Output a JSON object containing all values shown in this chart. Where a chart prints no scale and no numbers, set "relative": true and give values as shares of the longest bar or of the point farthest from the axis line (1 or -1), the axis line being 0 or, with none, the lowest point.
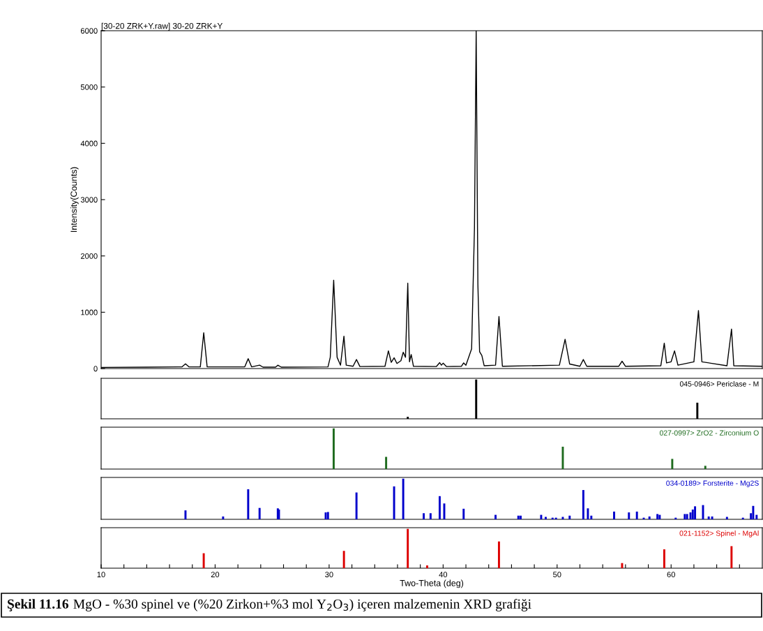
{
  "chart_data": [
    {
      "type": "line",
      "title": "[30-20 ZRK+Y.raw] 30-20 ZRK+Y",
      "ylabel": "Intensity(Counts)",
      "xlim": [
        10,
        68
      ],
      "ylim": [
        0,
        6000
      ],
      "yticks": [
        0,
        1000,
        2000,
        3000,
        4000,
        5000,
        6000
      ],
      "tick_labels": "y",
      "legend": false,
      "marker": "none",
      "line_style": "solid",
      "series": [
        {
          "color": "#000000",
          "x": [
            10,
            14,
            17.1,
            17.4,
            17.7,
            18.7,
            19.0,
            19.3,
            22.6,
            22.9,
            23.2,
            23.9,
            24.2,
            25.3,
            25.5,
            25.8,
            29.9,
            30.1,
            30.4,
            30.7,
            31.0,
            31.3,
            31.5,
            32.1,
            32.4,
            32.7,
            34.9,
            35.2,
            35.45,
            35.7,
            35.95,
            36.3,
            36.5,
            36.7,
            36.9,
            37.05,
            37.2,
            37.4,
            39.4,
            39.7,
            39.85,
            40.0,
            40.3,
            41.6,
            41.8,
            42.0,
            42.5,
            42.75,
            42.9,
            43.05,
            43.2,
            43.4,
            43.6,
            44.6,
            44.9,
            45.2,
            50.2,
            50.7,
            51.1,
            52.0,
            52.3,
            52.6,
            55.4,
            55.7,
            56.0,
            59.1,
            59.4,
            59.6,
            60.0,
            60.3,
            60.6,
            62.0,
            62.4,
            62.7,
            64.9,
            65.3,
            65.5,
            68
          ],
          "values": [
            20,
            25,
            30,
            85,
            30,
            30,
            635,
            30,
            30,
            175,
            30,
            60,
            25,
            25,
            60,
            25,
            30,
            200,
            1570,
            200,
            60,
            575,
            60,
            40,
            160,
            35,
            40,
            315,
            110,
            190,
            90,
            140,
            290,
            200,
            1515,
            120,
            250,
            40,
            35,
            105,
            60,
            95,
            35,
            40,
            100,
            60,
            350,
            2500,
            6000,
            1500,
            300,
            230,
            50,
            60,
            925,
            40,
            60,
            520,
            80,
            40,
            160,
            40,
            40,
            130,
            40,
            50,
            450,
            100,
            120,
            315,
            60,
            120,
            1030,
            120,
            50,
            700,
            50,
            40
          ]
        }
      ]
    },
    {
      "type": "bar",
      "relative": true,
      "xlim": [
        10,
        68
      ],
      "tick_labels": false,
      "legend": false,
      "series": [
        {
          "name": "045-0946> Periclase - M",
          "color": "#000000",
          "x": [
            36.9,
            42.9,
            62.3
          ],
          "values": [
            0.05,
            1.0,
            0.41
          ]
        }
      ]
    },
    {
      "type": "bar",
      "relative": true,
      "xlim": [
        10,
        68
      ],
      "tick_labels": false,
      "legend": false,
      "series": [
        {
          "name": "027-0997> ZrO2 - Zirconium O",
          "color": "#1e6b1e",
          "x": [
            30.4,
            35.0,
            50.5,
            60.1,
            63.0
          ],
          "values": [
            1.0,
            0.3,
            0.55,
            0.25,
            0.08
          ]
        }
      ]
    },
    {
      "type": "bar",
      "relative": true,
      "xlim": [
        10,
        68
      ],
      "tick_labels": false,
      "legend": false,
      "series": [
        {
          "name": "034-0189> Forsterite - Mg2S",
          "color": "#0000cc",
          "x": [
            17.4,
            20.7,
            22.9,
            23.9,
            25.5,
            25.6,
            29.7,
            29.9,
            32.4,
            35.7,
            36.5,
            38.3,
            38.9,
            39.7,
            40.1,
            41.8,
            44.6,
            46.6,
            46.8,
            48.6,
            49.0,
            49.6,
            49.9,
            50.5,
            51.1,
            52.3,
            52.7,
            53.0,
            55.0,
            56.3,
            57.0,
            57.6,
            58.1,
            58.8,
            59.0,
            60.4,
            61.2,
            61.4,
            61.7,
            61.9,
            62.1,
            62.8,
            63.3,
            63.6,
            64.9,
            66.3,
            67.0,
            67.2,
            67.5
          ],
          "values": [
            0.22,
            0.07,
            0.74,
            0.28,
            0.27,
            0.24,
            0.17,
            0.18,
            0.66,
            0.81,
            1.0,
            0.15,
            0.15,
            0.57,
            0.39,
            0.26,
            0.11,
            0.09,
            0.09,
            0.11,
            0.06,
            0.04,
            0.04,
            0.06,
            0.09,
            0.72,
            0.27,
            0.09,
            0.19,
            0.17,
            0.19,
            0.04,
            0.07,
            0.13,
            0.11,
            0.04,
            0.13,
            0.13,
            0.17,
            0.24,
            0.32,
            0.35,
            0.07,
            0.07,
            0.06,
            0.04,
            0.15,
            0.33,
            0.11
          ]
        }
      ]
    },
    {
      "type": "bar",
      "relative": true,
      "xlim": [
        10,
        68
      ],
      "tick_labels": "x",
      "legend": false,
      "xlabel": "Two-Theta (deg)",
      "xticks": [
        10,
        {
          "value": 12,
          "label": null
        },
        {
          "value": 14,
          "label": null
        },
        {
          "value": 16,
          "label": null
        },
        {
          "value": 18,
          "label": null
        },
        20,
        {
          "value": 22,
          "label": null
        },
        {
          "value": 24,
          "label": null
        },
        {
          "value": 26,
          "label": null
        },
        {
          "value": 28,
          "label": null
        },
        30,
        {
          "value": 32,
          "label": null
        },
        {
          "value": 34,
          "label": null
        },
        {
          "value": 36,
          "label": null
        },
        {
          "value": 38,
          "label": null
        },
        40,
        {
          "value": 42,
          "label": null
        },
        {
          "value": 44,
          "label": null
        },
        {
          "value": 46,
          "label": null
        },
        {
          "value": 48,
          "label": null
        },
        50,
        {
          "value": 52,
          "label": null
        },
        {
          "value": 54,
          "label": null
        },
        {
          "value": 56,
          "label": null
        },
        {
          "value": 58,
          "label": null
        },
        60,
        {
          "value": 62,
          "label": null
        },
        {
          "value": 64,
          "label": null
        },
        {
          "value": 66,
          "label": null
        }
      ],
      "annotations": [
        "Şekil 11.16",
        "MgO - %30 spinel ve (%20 Zirkon+%3 mol Y$_{2}$O$_{3}$) içeren malzemenin XRD grafiği"
      ],
      "series": [
        {
          "name": "021-1152> Spinel - MgAl",
          "color": "#dd0000",
          "x": [
            19.0,
            31.3,
            36.9,
            38.6,
            44.9,
            55.7,
            59.4,
            65.3
          ],
          "values": [
            0.38,
            0.44,
            1.0,
            0.07,
            0.68,
            0.13,
            0.48,
            0.56
          ]
        }
      ]
    }
  ]
}
